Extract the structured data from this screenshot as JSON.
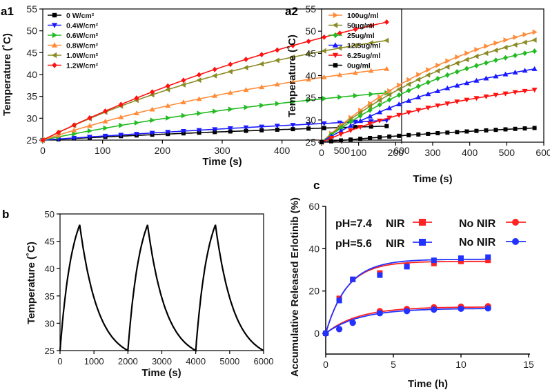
{
  "chart_data": [
    {
      "id": "a1",
      "panel_label": "a1",
      "type": "line",
      "xlabel": "Time (s)",
      "ylabel": "Temperature (˚C)",
      "xlim": [
        0,
        600
      ],
      "ylim": [
        25,
        55
      ],
      "xticks": [
        "0",
        "100",
        "200",
        "300",
        "400",
        "500",
        "600"
      ],
      "yticks": [
        "25",
        "30",
        "35",
        "40",
        "45",
        "50",
        "55"
      ],
      "x": [
        0,
        575
      ],
      "series": [
        {
          "name": "0 W/cm²",
          "color": "#000000",
          "marker": "square",
          "start": 25,
          "end": 28.2,
          "k": 0.6,
          "n": 22
        },
        {
          "name": "0.4W/cm²",
          "color": "#1a1aff",
          "marker": "tri-down",
          "start": 25,
          "end": 29.5,
          "k": 0.4,
          "n": 22
        },
        {
          "name": "0.6W/cm²",
          "color": "#22bb22",
          "marker": "tri-right",
          "start": 25,
          "end": 35.8,
          "k": 0.9,
          "n": 22
        },
        {
          "name": "0.8W/cm²",
          "color": "#ff8c3a",
          "marker": "tri-up",
          "start": 25,
          "end": 41.3,
          "k": 1.0,
          "n": 22
        },
        {
          "name": "1.0W/cm²",
          "color": "#8b8b26",
          "marker": "tri-left",
          "start": 25,
          "end": 47.8,
          "k": 1.2,
          "n": 22
        },
        {
          "name": "1.2W/cm²",
          "color": "#ff1111",
          "marker": "diamond",
          "start": 25,
          "end": 52.0,
          "k": 0.8,
          "n": 22
        }
      ]
    },
    {
      "id": "a2",
      "panel_label": "a2",
      "type": "line",
      "xlabel": "Time (s)",
      "ylabel": "Temperature (˚C)",
      "xlim": [
        0,
        600
      ],
      "ylim": [
        25,
        55
      ],
      "xticks": [
        "0",
        "100",
        "200",
        "300",
        "400",
        "500",
        "600"
      ],
      "yticks": [
        "25",
        "30",
        "35",
        "40",
        "45",
        "50",
        "55"
      ],
      "x": [
        0,
        575
      ],
      "series": [
        {
          "name": "100ug/ml",
          "color": "#ff8c3a",
          "marker": "tri-right",
          "start": 25,
          "end": 49.8,
          "k": 1.3,
          "n": 22
        },
        {
          "name": "50ug/ml",
          "color": "#8b8b26",
          "marker": "tri-left",
          "start": 25,
          "end": 48.0,
          "k": 1.3,
          "n": 22
        },
        {
          "name": "25ug/ml",
          "color": "#22bb22",
          "marker": "diamond",
          "start": 25,
          "end": 45.5,
          "k": 1.3,
          "n": 22
        },
        {
          "name": "12.5ug/ml",
          "color": "#1a1aff",
          "marker": "tri-up",
          "start": 25,
          "end": 41.5,
          "k": 1.3,
          "n": 22
        },
        {
          "name": "6.25ug/ml",
          "color": "#ff1111",
          "marker": "tri-down",
          "start": 25,
          "end": 36.8,
          "k": 1.3,
          "n": 22
        },
        {
          "name": "0ug/ml",
          "color": "#000000",
          "marker": "square",
          "start": 25,
          "end": 28.2,
          "k": 0.7,
          "n": 22
        }
      ]
    },
    {
      "id": "b",
      "panel_label": "b",
      "type": "line",
      "xlabel": "Time (s)",
      "ylabel": "Temperature (˚C)",
      "xlim": [
        0,
        6000
      ],
      "ylim": [
        25,
        50
      ],
      "xticks": [
        "0",
        "1000",
        "2000",
        "3000",
        "4000",
        "5000",
        "6000"
      ],
      "yticks": [
        "25",
        "30",
        "35",
        "40",
        "45",
        "50"
      ],
      "cycles": [
        {
          "t0": 0,
          "peak_t": 580,
          "end_t": 2000,
          "t_min": 25,
          "t_max": 48
        },
        {
          "t0": 2000,
          "peak_t": 2580,
          "end_t": 4000,
          "t_min": 25,
          "t_max": 48
        },
        {
          "t0": 4000,
          "peak_t": 4580,
          "end_t": 6000,
          "t_min": 25,
          "t_max": 48
        }
      ]
    },
    {
      "id": "c",
      "panel_label": "c",
      "type": "scatter",
      "xlabel": "Time (h)",
      "ylabel": "Accumulative Released Erlotinib (%)",
      "xlim": [
        0,
        15
      ],
      "ylim": [
        -8,
        60
      ],
      "xticks": [
        "0",
        "5",
        "10",
        "15"
      ],
      "yticks": [
        "0",
        "20",
        "40",
        "60"
      ],
      "legend": {
        "row1_ph": "pH=7.4",
        "row2_ph": "pH=5.6",
        "nir": "NIR",
        "no_nir": "No NIR"
      },
      "series": [
        {
          "name": "pH=7.4 NIR",
          "color": "#ff2222",
          "marker": "square",
          "x": [
            0,
            1,
            2,
            4,
            6,
            8,
            10,
            12
          ],
          "y": [
            0,
            16.5,
            25.5,
            28.5,
            32,
            33,
            34,
            34.5
          ],
          "fit": {
            "max": 34,
            "rate": 0.65
          }
        },
        {
          "name": "pH=5.6 NIR",
          "color": "#2233ff",
          "marker": "square",
          "x": [
            0,
            1,
            2,
            4,
            6,
            8,
            10,
            12
          ],
          "y": [
            0,
            15.5,
            25.5,
            27.5,
            31.5,
            34.5,
            35.5,
            36
          ],
          "fit": {
            "max": 35,
            "rate": 0.62
          }
        },
        {
          "name": "pH=7.4 No NIR",
          "color": "#ff2222",
          "marker": "circle",
          "x": [
            0,
            1,
            2,
            4,
            6,
            8,
            10,
            12
          ],
          "y": [
            0,
            2,
            5,
            10.5,
            11.5,
            12.3,
            12.6,
            12.8
          ],
          "fit": {
            "max": 12.5,
            "rate": 0.42
          }
        },
        {
          "name": "pH=5.6 No NIR",
          "color": "#2233ff",
          "marker": "circle",
          "x": [
            0,
            1,
            2,
            4,
            6,
            8,
            10,
            12
          ],
          "y": [
            0,
            2,
            5,
            9.5,
            10.5,
            11.2,
            11.6,
            11.8
          ],
          "fit": {
            "max": 11.8,
            "rate": 0.4
          }
        }
      ]
    }
  ]
}
